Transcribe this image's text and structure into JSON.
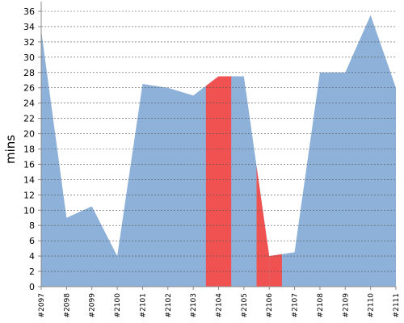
{
  "chart_data": {
    "type": "area",
    "ylabel": "mins",
    "xlabel": "",
    "ylim": [
      0,
      36
    ],
    "ytick_step": 2,
    "grid": true,
    "categories": [
      "#2097",
      "#2098",
      "#2099",
      "#2100",
      "#2101",
      "#2102",
      "#2103",
      "#2104",
      "#2105",
      "#2106",
      "#2107",
      "#2108",
      "#2109",
      "#2110",
      "#2111"
    ],
    "values": [
      33.5,
      9.0,
      10.5,
      4.0,
      26.5,
      26.0,
      25.0,
      27.5,
      27.5,
      4.0,
      4.5,
      28.0,
      28.0,
      35.5,
      26.0
    ],
    "highlight_bands": [
      {
        "from": "#2103",
        "to": "#2104",
        "half": "right",
        "color": "#f05252"
      },
      {
        "from": "#2104",
        "to": "#2105",
        "half": "left",
        "color": "#f05252"
      },
      {
        "from": "#2105",
        "to": "#2106",
        "half": "right",
        "color": "#f05252"
      },
      {
        "from": "#2106",
        "to": "#2107",
        "half": "left",
        "color": "#f05252"
      }
    ],
    "colors": {
      "area": "#8eb1d9",
      "highlight": "#f05252",
      "grid": "#555555"
    }
  }
}
